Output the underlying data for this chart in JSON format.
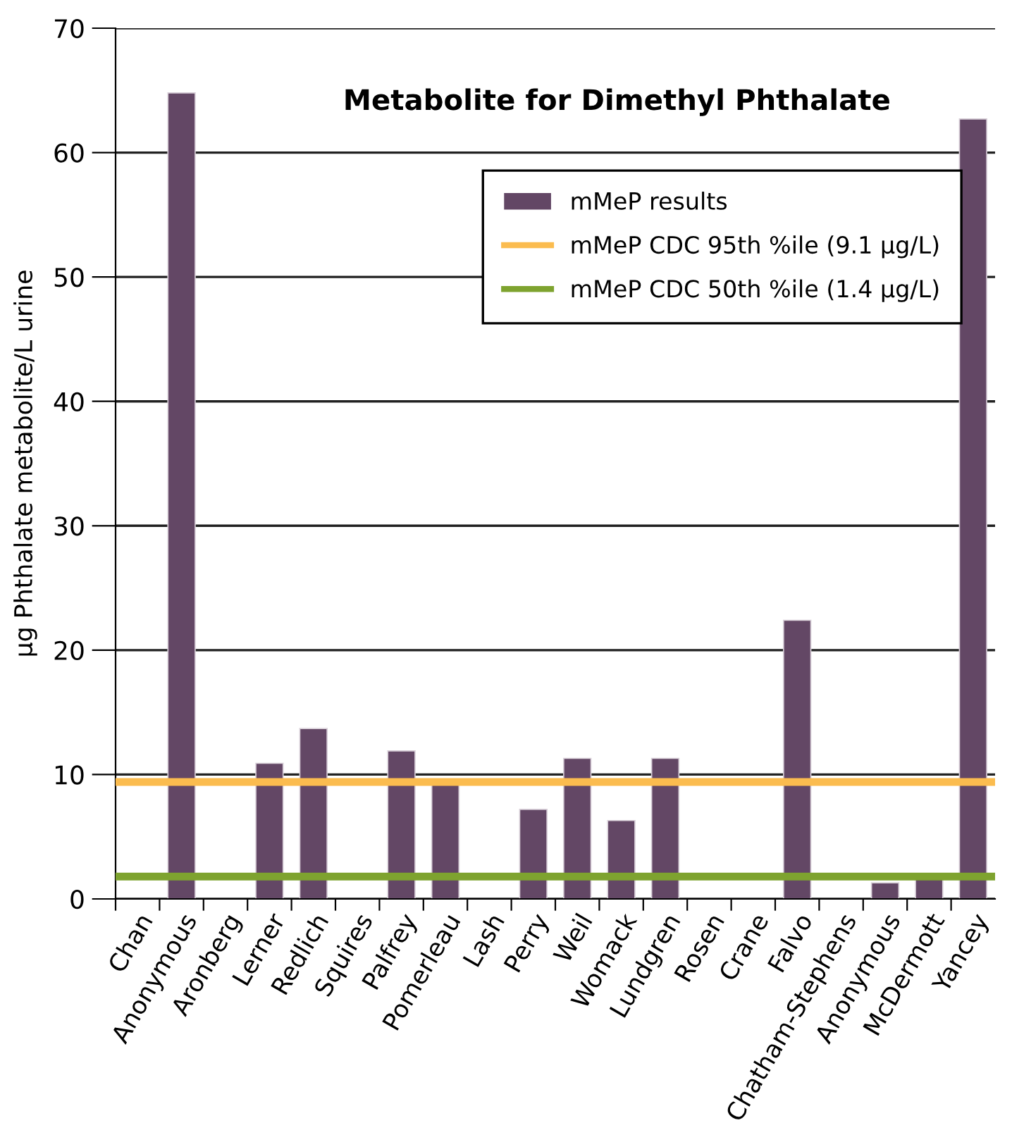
{
  "chart_data": {
    "type": "bar",
    "title": "Metabolite for Dimethyl Phthalate",
    "ylabel": "µg Phthalate metabolite/L urine",
    "categories": [
      "Chan",
      "Anonymous",
      "Aronberg",
      "Lerner",
      "Redlich",
      "Squires",
      "Palfrey",
      "Pomerleau",
      "Lash",
      "Perry",
      "Weil",
      "Womack",
      "Lundgren",
      "Rosen",
      "Crane",
      "Falvo",
      "Chatham-Stephens",
      "Anonymous",
      "McDermott",
      "Yancey"
    ],
    "series": [
      {
        "name": "mMeP results",
        "color": "#634765",
        "values": [
          null,
          64.8,
          null,
          10.9,
          13.7,
          null,
          11.9,
          9.2,
          null,
          7.2,
          11.3,
          6.3,
          11.3,
          null,
          null,
          22.4,
          null,
          1.3,
          1.7,
          62.7
        ]
      }
    ],
    "ref_lines": [
      {
        "axis": "y",
        "value": 9.4,
        "label": "mMeP CDC 95th %ile (9.1 µg/L)",
        "color": "#fbbc4f"
      },
      {
        "axis": "y",
        "value": 1.8,
        "label": "mMeP CDC 50th %ile (1.4 µg/L)",
        "color": "#7ea32f"
      }
    ],
    "ylim": [
      0,
      70
    ],
    "yticks": [
      0,
      10,
      20,
      30,
      40,
      50,
      60,
      70
    ],
    "grid": "y",
    "legend": "top right"
  }
}
